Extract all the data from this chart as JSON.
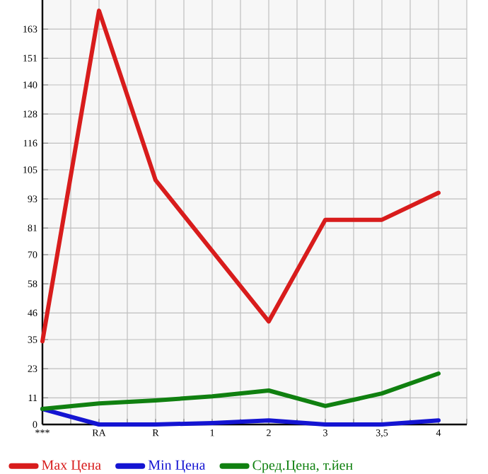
{
  "chart_data": {
    "type": "line",
    "categories": [
      "***",
      "RA",
      "R",
      "1",
      "2",
      "3",
      "3,5",
      "4"
    ],
    "series": [
      {
        "name": "Max Цена",
        "color": "#d81c1c",
        "values": [
          34.3,
          170.6,
          100.7,
          71.6,
          42.5,
          84.4,
          84.4,
          95.5
        ]
      },
      {
        "name": "Min Цена",
        "color": "#1414d2",
        "values": [
          6.4,
          0,
          0,
          0.6,
          1.7,
          0,
          0,
          1.7
        ]
      },
      {
        "name": "Сред.Цена, т.йен",
        "color": "#108010",
        "values": [
          6.4,
          8.7,
          9.9,
          11.6,
          14,
          7.6,
          12.8,
          21
        ]
      }
    ],
    "ylim": [
      0,
      175
    ],
    "yticks": [
      0,
      11,
      23,
      35,
      46,
      58,
      70,
      81,
      93,
      105,
      116,
      128,
      140,
      151,
      163
    ],
    "grid": true,
    "legend": "bottom",
    "marker": "none",
    "line_style": "solid"
  }
}
